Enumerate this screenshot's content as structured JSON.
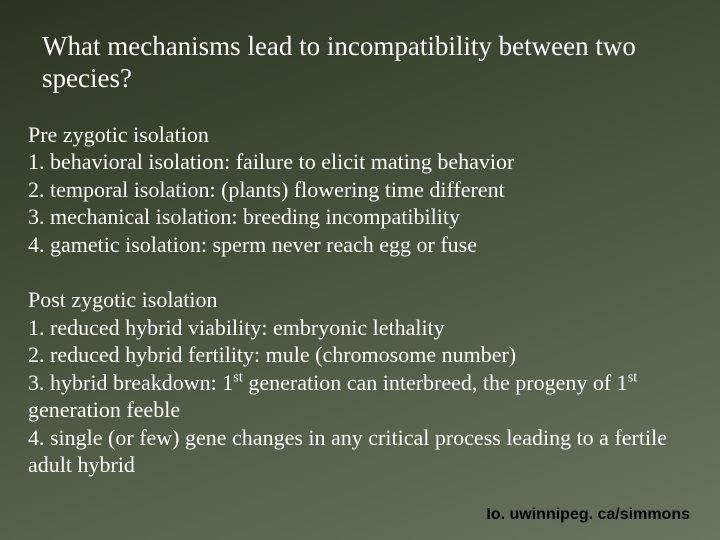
{
  "colors": {
    "background_gradient_top": "#2a3320",
    "background_gradient_bottom": "#6a7560",
    "text": "#ffffff",
    "footer_text": "#000000"
  },
  "typography": {
    "body_font": "Times New Roman",
    "footer_font": "Arial",
    "title_fontsize": 27,
    "body_fontsize": 22,
    "footer_fontsize": 16
  },
  "title": "What mechanisms lead to incompatibility between two species?",
  "sections": [
    {
      "heading": "Pre zygotic isolation",
      "items": [
        "1. behavioral isolation: failure to elicit mating behavior",
        "2. temporal isolation: (plants) flowering time different",
        "3. mechanical isolation: breeding incompatibility",
        "4. gametic isolation: sperm never reach egg or fuse"
      ]
    },
    {
      "heading": "Post zygotic isolation",
      "items": [
        "1. reduced hybrid viability: embryonic lethality",
        "2. reduced hybrid fertility: mule (chromosome number)",
        "3. hybrid breakdown: 1st generation can interbreed, the progeny of 1st generation feeble",
        "4. single (or few) gene changes in any critical process leading to a fertile adult hybrid"
      ]
    }
  ],
  "footer": "Io. uwinnipeg. ca/simmons"
}
